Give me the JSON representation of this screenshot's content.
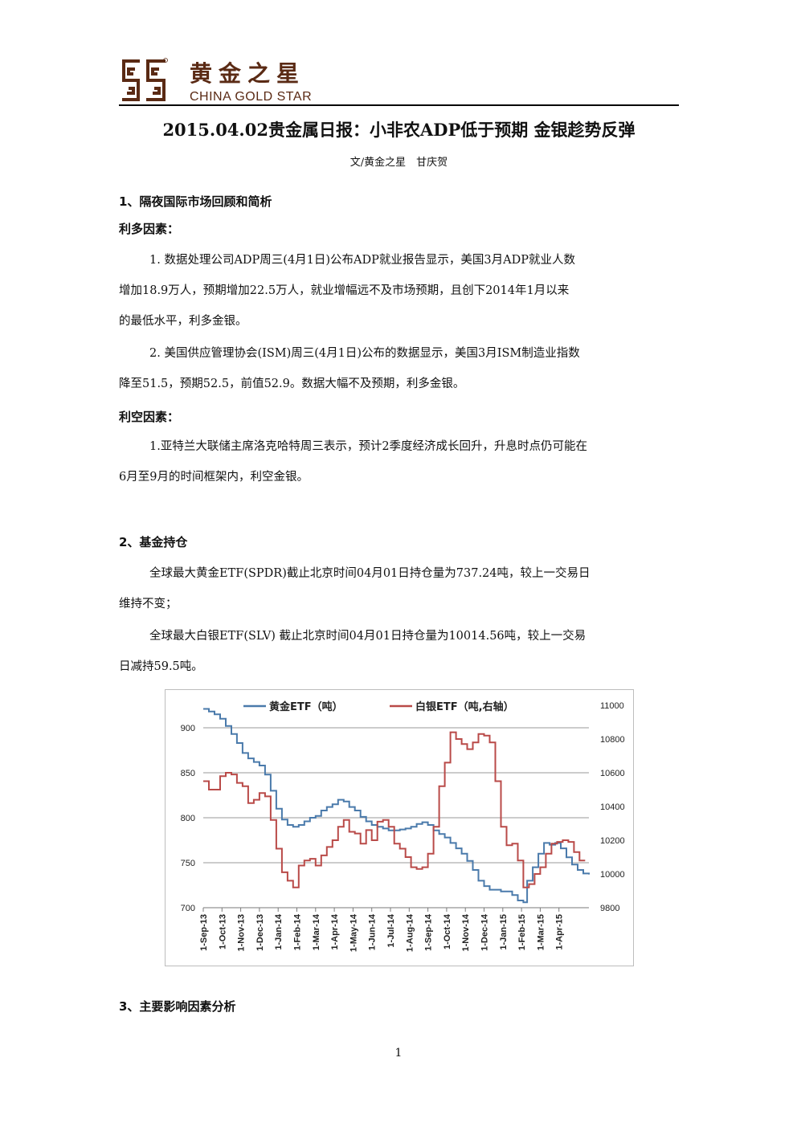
{
  "header": {
    "brand_cn": "黄金之星",
    "brand_en": "CHINA GOLD STAR",
    "logo_icon": "ss-logo-icon",
    "brand_color": "#5a2a14"
  },
  "title": "2015.04.02贵金属日报：小非农ADP低于预期 金银趁势反弹",
  "byline": "文/黄金之星　甘庆贺",
  "section1": {
    "heading": "1、隔夜国际市场回顾和简析",
    "bullish_label": "利多因素：",
    "bullish_items": [
      [
        "1. 数据处理公司ADP周三(4月1日)公布ADP就业报告显示，美国3月ADP就业人数",
        "增加18.9万人，预期增加22.5万人，就业增幅远不及市场预期，且创下2014年1月以来",
        "的最低水平，利多金银。"
      ],
      [
        "2. 美国供应管理协会(ISM)周三(4月1日)公布的数据显示，美国3月ISM制造业指数",
        "降至51.5，预期52.5，前值52.9。数据大幅不及预期，利多金银。"
      ]
    ],
    "bearish_label": "利空因素：",
    "bearish_items": [
      [
        "1.亚特兰大联储主席洛克哈特周三表示，预计2季度经济成长回升，升息时点仍可能在",
        "6月至9月的时间框架内，利空金银。"
      ]
    ]
  },
  "section2": {
    "heading": "2、基金持仓",
    "paragraphs": [
      [
        "全球最大黄金ETF(SPDR)截止北京时间04月01日持仓量为737.24吨，较上一交易日",
        "维持不变；"
      ],
      [
        "全球最大白银ETF(SLV) 截止北京时间04月01日持仓量为10014.56吨，较上一交易",
        "日减持59.5吨。"
      ]
    ]
  },
  "section3": {
    "heading": "3、主要影响因素分析"
  },
  "page_number": "1",
  "chart_data": {
    "type": "line",
    "categories": [
      "1-Sep-13",
      "1-Oct-13",
      "1-Nov-13",
      "1-Dec-13",
      "1-Jan-14",
      "1-Feb-14",
      "1-Mar-14",
      "1-Apr-14",
      "1-May-14",
      "1-Jun-14",
      "1-Jul-14",
      "1-Aug-14",
      "1-Sep-14",
      "1-Oct-14",
      "1-Nov-14",
      "1-Dec-14",
      "1-Jan-15",
      "1-Feb-15",
      "1-Mar-15",
      "1-Apr-15"
    ],
    "series": [
      {
        "name": "黄金ETF（吨）",
        "axis": "left",
        "color": "#4a7aab",
        "points": [
          [
            0,
            921
          ],
          [
            0.3,
            918
          ],
          [
            0.6,
            915
          ],
          [
            0.9,
            910
          ],
          [
            1.2,
            902
          ],
          [
            1.5,
            893
          ],
          [
            1.8,
            883
          ],
          [
            2.1,
            872
          ],
          [
            2.4,
            866
          ],
          [
            2.7,
            862
          ],
          [
            3,
            858
          ],
          [
            3.3,
            848
          ],
          [
            3.6,
            830
          ],
          [
            3.9,
            810
          ],
          [
            4.2,
            798
          ],
          [
            4.5,
            792
          ],
          [
            4.8,
            790
          ],
          [
            5.1,
            792
          ],
          [
            5.4,
            796
          ],
          [
            5.7,
            800
          ],
          [
            6,
            802
          ],
          [
            6.3,
            808
          ],
          [
            6.6,
            812
          ],
          [
            6.9,
            815
          ],
          [
            7.2,
            820
          ],
          [
            7.5,
            818
          ],
          [
            7.8,
            812
          ],
          [
            8.1,
            808
          ],
          [
            8.4,
            801
          ],
          [
            8.7,
            796
          ],
          [
            9,
            792
          ],
          [
            9.3,
            790
          ],
          [
            9.6,
            788
          ],
          [
            9.9,
            786
          ],
          [
            10.2,
            786
          ],
          [
            10.5,
            787
          ],
          [
            10.8,
            788
          ],
          [
            11.1,
            790
          ],
          [
            11.4,
            793
          ],
          [
            11.7,
            795
          ],
          [
            12,
            792
          ],
          [
            12.3,
            786
          ],
          [
            12.6,
            782
          ],
          [
            12.9,
            778
          ],
          [
            13.2,
            772
          ],
          [
            13.5,
            766
          ],
          [
            13.8,
            760
          ],
          [
            14.1,
            752
          ],
          [
            14.4,
            742
          ],
          [
            14.7,
            730
          ],
          [
            15,
            724
          ],
          [
            15.3,
            720
          ],
          [
            15.6,
            720
          ],
          [
            15.9,
            718
          ],
          [
            16.2,
            718
          ],
          [
            16.5,
            714
          ],
          [
            16.8,
            708
          ],
          [
            17.1,
            706
          ],
          [
            17.3,
            730
          ],
          [
            17.6,
            745
          ],
          [
            17.9,
            760
          ],
          [
            18.2,
            772
          ],
          [
            18.5,
            770
          ],
          [
            18.8,
            772
          ],
          [
            19.1,
            766
          ],
          [
            19.4,
            756
          ],
          [
            19.7,
            748
          ],
          [
            20,
            742
          ],
          [
            20.3,
            738
          ],
          [
            20.6,
            737
          ]
        ]
      },
      {
        "name": "白银ETF（吨,右轴）",
        "axis": "right",
        "color": "#b94a48",
        "points": [
          [
            0,
            10550
          ],
          [
            0.3,
            10500
          ],
          [
            0.6,
            10500
          ],
          [
            0.9,
            10580
          ],
          [
            1.2,
            10600
          ],
          [
            1.5,
            10590
          ],
          [
            1.8,
            10540
          ],
          [
            2.1,
            10520
          ],
          [
            2.4,
            10420
          ],
          [
            2.7,
            10440
          ],
          [
            3,
            10480
          ],
          [
            3.3,
            10460
          ],
          [
            3.6,
            10320
          ],
          [
            3.9,
            10150
          ],
          [
            4.2,
            10010
          ],
          [
            4.5,
            9960
          ],
          [
            4.8,
            9920
          ],
          [
            5.1,
            10050
          ],
          [
            5.4,
            10080
          ],
          [
            5.7,
            10090
          ],
          [
            6,
            10050
          ],
          [
            6.3,
            10110
          ],
          [
            6.6,
            10160
          ],
          [
            6.9,
            10200
          ],
          [
            7.2,
            10280
          ],
          [
            7.5,
            10320
          ],
          [
            7.8,
            10250
          ],
          [
            8.1,
            10240
          ],
          [
            8.4,
            10180
          ],
          [
            8.7,
            10260
          ],
          [
            9,
            10200
          ],
          [
            9.3,
            10310
          ],
          [
            9.6,
            10320
          ],
          [
            9.9,
            10280
          ],
          [
            10.2,
            10180
          ],
          [
            10.5,
            10150
          ],
          [
            10.8,
            10100
          ],
          [
            11.1,
            10040
          ],
          [
            11.4,
            10030
          ],
          [
            11.7,
            10040
          ],
          [
            12,
            10120
          ],
          [
            12.3,
            10280
          ],
          [
            12.6,
            10520
          ],
          [
            12.9,
            10660
          ],
          [
            13.2,
            10840
          ],
          [
            13.5,
            10800
          ],
          [
            13.8,
            10770
          ],
          [
            14.1,
            10740
          ],
          [
            14.4,
            10780
          ],
          [
            14.7,
            10830
          ],
          [
            15,
            10820
          ],
          [
            15.3,
            10780
          ],
          [
            15.6,
            10550
          ],
          [
            15.9,
            10280
          ],
          [
            16.2,
            10170
          ],
          [
            16.5,
            10180
          ],
          [
            16.8,
            10080
          ],
          [
            17.1,
            9920
          ],
          [
            17.4,
            9940
          ],
          [
            17.7,
            10000
          ],
          [
            18,
            10040
          ],
          [
            18.3,
            10120
          ],
          [
            18.6,
            10180
          ],
          [
            18.9,
            10190
          ],
          [
            19.2,
            10200
          ],
          [
            19.5,
            10190
          ],
          [
            19.8,
            10130
          ],
          [
            20.1,
            10080
          ],
          [
            20.4,
            10080
          ]
        ]
      }
    ],
    "y_left": {
      "ticks": [
        700,
        750,
        800,
        850,
        900
      ],
      "ylim": [
        700,
        925
      ]
    },
    "y_right": {
      "ticks": [
        9800,
        10000,
        10200,
        10400,
        10600,
        10800,
        11000
      ],
      "ylim": [
        9800,
        11000
      ]
    },
    "grid": "horizontal",
    "legend": "top"
  }
}
